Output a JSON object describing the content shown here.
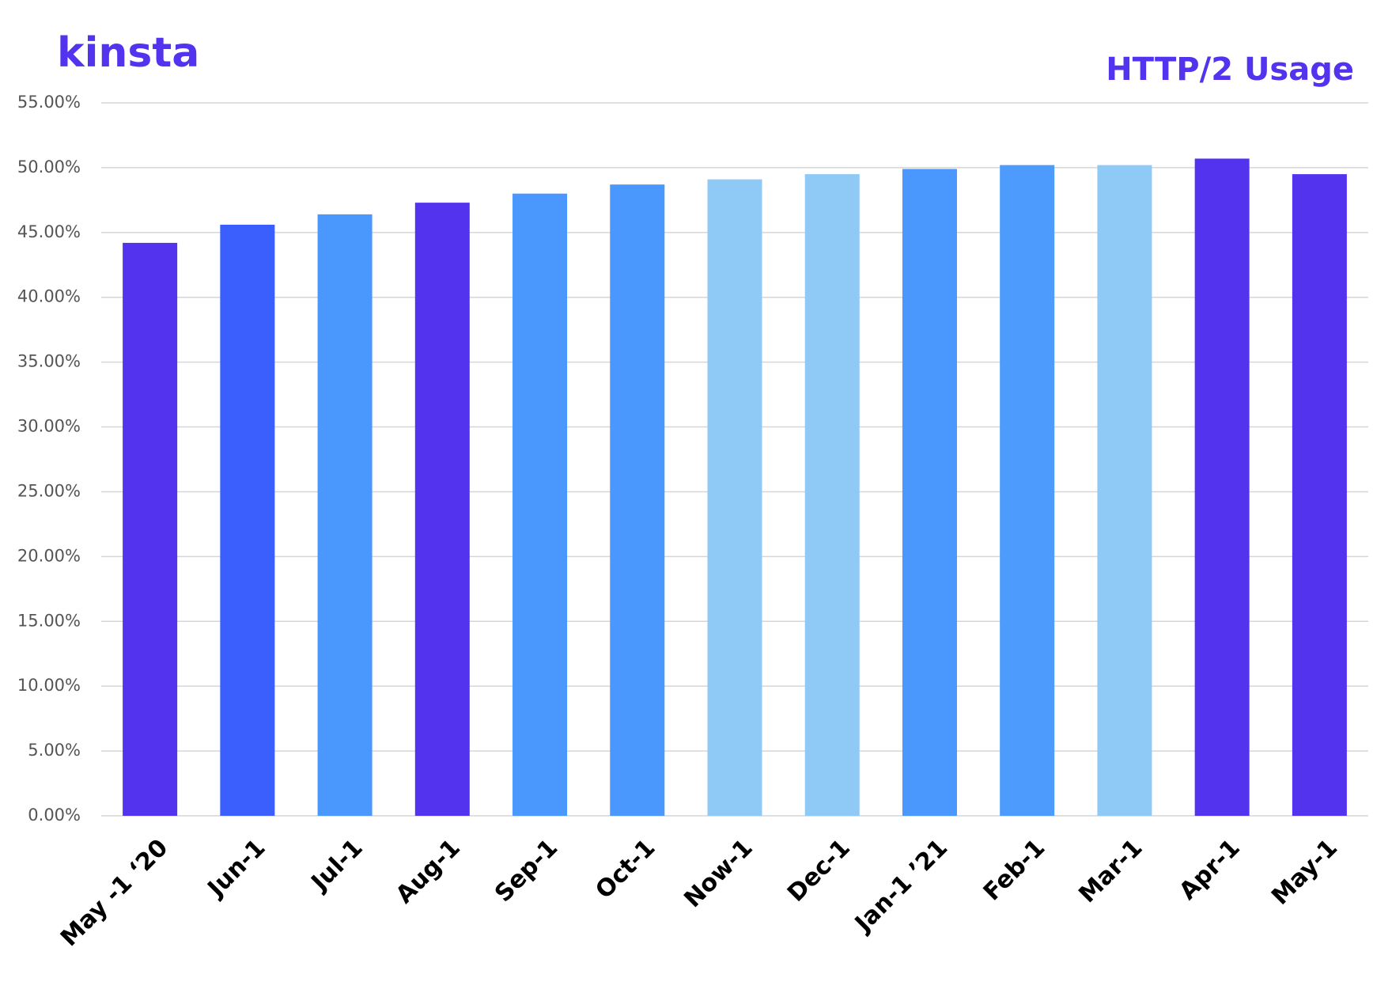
{
  "chart_data": {
    "type": "bar",
    "title": "HTTP/2 Usage",
    "logo": "kinsta",
    "categories": [
      "May -1 ‘20",
      "Jun-1",
      "Jul-1",
      "Aug-1",
      "Sep-1",
      "Oct-1",
      "Now-1",
      "Dec-1",
      "Jan-1 ’21",
      "Feb-1",
      "Mar-1",
      "Apr-1",
      "May-1"
    ],
    "values": [
      44.2,
      45.6,
      46.4,
      47.3,
      48.0,
      48.7,
      49.1,
      49.5,
      49.9,
      50.2,
      50.2,
      50.7,
      49.5
    ],
    "colors": [
      "#5333ed",
      "#3a5ffd",
      "#4a98fd",
      "#5333ed",
      "#4a98fd",
      "#4a98fd",
      "#8fc9f5",
      "#8fc9f5",
      "#4a98fd",
      "#4c9bfd",
      "#8fc9f5",
      "#5333ed",
      "#5333ed"
    ],
    "ylim": [
      0,
      55
    ],
    "yticks": [
      {
        "value": 0,
        "label": "0.00%"
      },
      {
        "value": 5,
        "label": "5.00%"
      },
      {
        "value": 10,
        "label": "10.00%"
      },
      {
        "value": 15,
        "label": "15.00%"
      },
      {
        "value": 20,
        "label": "20.00%"
      },
      {
        "value": 25,
        "label": "25.00%"
      },
      {
        "value": 30,
        "label": "30.00%"
      },
      {
        "value": 35,
        "label": "35.00%"
      },
      {
        "value": 40,
        "label": "40.00%"
      },
      {
        "value": 45,
        "label": "45.00%"
      },
      {
        "value": 50,
        "label": "50.00%"
      },
      {
        "value": 55,
        "label": "55.00%"
      }
    ],
    "grid": true
  }
}
